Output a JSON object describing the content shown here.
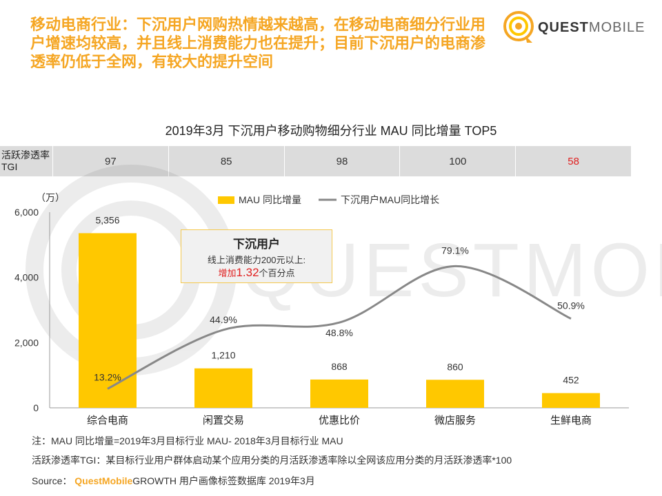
{
  "headline": "移动电商行业：下沉用户网购热情越来越高，在移动电商细分行业用户增速均较高，并且线上消费能力也在提升；目前下沉用户的电商渗透率仍低于全网，有较大的提升空间",
  "brand": {
    "name_bold": "QUEST",
    "name_light": "MOBILE"
  },
  "watermark": "QUESTMOBILE",
  "tgi": {
    "label": "活跃渗透率TGI",
    "values": [
      "97",
      "85",
      "98",
      "100",
      "58"
    ]
  },
  "callout": {
    "title": "下沉用户",
    "line1": "线上消费能力200元以上:",
    "line2_prefix": "增加",
    "line2_value": "1.32",
    "line2_suffix": "个百分点"
  },
  "notes": {
    "note1": "注：MAU 同比增量=2019年3月目标行业 MAU- 2018年3月目标行业 MAU",
    "note2": "活跃渗透率TGI：某目标行业用户群体启动某个应用分类的月活跃渗透率除以全网该应用分类的月活跃渗透率*100",
    "source_label": "Source：",
    "source_brand": "QuestMobile",
    "source_text": "GROWTH 用户画像标签数据库 2019年3月"
  },
  "colors": {
    "accent": "#f5a623",
    "bar": "#ffc800",
    "line": "#888888",
    "highlight": "#e02020",
    "table_bg": "#dcdcdc"
  },
  "chart_data": {
    "type": "bar",
    "title": "2019年3月 下沉用户移动购物细分行业 MAU 同比增量 TOP5",
    "ylabel": "（万）",
    "categories": [
      "综合电商",
      "闲置交易",
      "优惠比价",
      "微店服务",
      "生鲜电商"
    ],
    "ylim": [
      0,
      6000
    ],
    "yticks": [
      "0",
      "2,000",
      "4,000",
      "6,000"
    ],
    "legend_position": "top",
    "series": [
      {
        "name": "MAU 同比增量",
        "type": "bar",
        "values": [
          5356,
          1210,
          868,
          860,
          452
        ],
        "labels": [
          "5,356",
          "1,210",
          "868",
          "860",
          "452"
        ]
      },
      {
        "name": "下沉用户MAU同比增长",
        "type": "line",
        "values": [
          13.2,
          44.9,
          48.8,
          79.1,
          50.9
        ],
        "labels": [
          "13.2%",
          "44.9%",
          "48.8%",
          "79.1%",
          "50.9%"
        ]
      }
    ]
  }
}
